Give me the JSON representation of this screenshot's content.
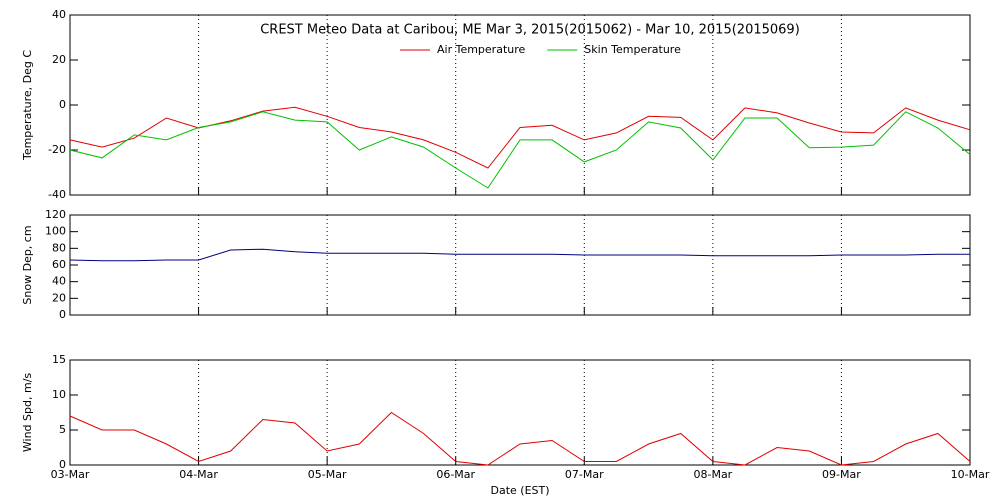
{
  "chart_data": [
    {
      "type": "line",
      "title": "CREST Meteo Data at Caribou, ME   Mar  3, 2015(2015062) - Mar 10, 2015(2015069)",
      "y_label": "Temperature, Deg C",
      "x": [
        0,
        0.25,
        0.5,
        0.75,
        1,
        1.25,
        1.5,
        1.75,
        2,
        2.25,
        2.5,
        2.75,
        3,
        3.25,
        3.5,
        3.75,
        4,
        4.25,
        4.5,
        4.75,
        5,
        5.25,
        5.5,
        5.75,
        6,
        6.25,
        6.5,
        6.75,
        7
      ],
      "xlim": [
        0,
        7
      ],
      "xticks": [
        0,
        1,
        2,
        3,
        4,
        5,
        6,
        7
      ],
      "ylim": [
        -40,
        40
      ],
      "yticks": [
        -40,
        -20,
        0,
        20,
        40
      ],
      "grid": "x",
      "series": [
        {
          "name": "Air Temperature",
          "color": "#e00000",
          "values": [
            -15.5,
            -18.7,
            -14.7,
            -5.8,
            -10.2,
            -7,
            -2.7,
            -1,
            -5,
            -10,
            -12,
            -15.5,
            -21,
            -28,
            -10,
            -9,
            -15.5,
            -12.4,
            -5,
            -5.5,
            -15.5,
            -1.3,
            -3.5,
            -8,
            -12,
            -12.4,
            -1.3,
            -6.7,
            -11
          ]
        },
        {
          "name": "Skin Temperature",
          "color": "#00c000",
          "values": [
            -20,
            -23.5,
            -13.3,
            -15.5,
            -10,
            -7.5,
            -3,
            -6.7,
            -7.5,
            -20,
            -14.2,
            -18.7,
            -28,
            -36.9,
            -15.5,
            -15.5,
            -25.3,
            -20,
            -7.5,
            -10.2,
            -24.4,
            -5.8,
            -5.8,
            -19,
            -18.7,
            -17.8,
            -3,
            -10.2,
            -22
          ]
        }
      ]
    },
    {
      "type": "line",
      "y_label": "Snow Dep, cm",
      "x": [
        0,
        0.25,
        0.5,
        0.75,
        1,
        1.25,
        1.5,
        1.75,
        2,
        2.25,
        2.5,
        2.75,
        3,
        3.25,
        3.5,
        3.75,
        4,
        4.25,
        4.5,
        4.75,
        5,
        5.25,
        5.5,
        5.75,
        6,
        6.25,
        6.5,
        6.75,
        7
      ],
      "xlim": [
        0,
        7
      ],
      "xticks": [
        0,
        1,
        2,
        3,
        4,
        5,
        6,
        7
      ],
      "ylim": [
        0,
        120
      ],
      "yticks": [
        0,
        20,
        40,
        60,
        80,
        100,
        120
      ],
      "grid": "x",
      "series": [
        {
          "name": "Snow Depth",
          "color": "#000080",
          "values": [
            66,
            65,
            65,
            66,
            66,
            78,
            79,
            76,
            74,
            74,
            74,
            74,
            73,
            73,
            73,
            73,
            72,
            72,
            72,
            72,
            71,
            71,
            71,
            71,
            72,
            72,
            72,
            73,
            73
          ]
        }
      ]
    },
    {
      "type": "line",
      "y_label": "Wind Spd, m/s",
      "x_label": "Date (EST)",
      "x": [
        0,
        0.25,
        0.5,
        0.75,
        1,
        1.25,
        1.5,
        1.75,
        2,
        2.25,
        2.5,
        2.75,
        3,
        3.25,
        3.5,
        3.75,
        4,
        4.25,
        4.5,
        4.75,
        5,
        5.25,
        5.5,
        5.75,
        6,
        6.25,
        6.5,
        6.75,
        7
      ],
      "xlim": [
        0,
        7
      ],
      "xticks": [
        {
          "value": 0,
          "label": "03-Mar"
        },
        {
          "value": 1,
          "label": "04-Mar"
        },
        {
          "value": 2,
          "label": "05-Mar"
        },
        {
          "value": 3,
          "label": "06-Mar"
        },
        {
          "value": 4,
          "label": "07-Mar"
        },
        {
          "value": 5,
          "label": "08-Mar"
        },
        {
          "value": 6,
          "label": "09-Mar"
        },
        {
          "value": 7,
          "label": "10-Mar"
        }
      ],
      "ylim": [
        0,
        15
      ],
      "yticks": [
        0,
        5,
        10,
        15
      ],
      "grid": "x",
      "series": [
        {
          "name": "Wind Speed",
          "color": "#e00000",
          "values": [
            7,
            5,
            5,
            3,
            0.5,
            2,
            6.5,
            6,
            2,
            3,
            7.5,
            4.5,
            0.5,
            0,
            3,
            3.5,
            0.5,
            0.5,
            3,
            4.5,
            0.5,
            0,
            2.5,
            2,
            0,
            0.5,
            3,
            4.5,
            0.5
          ]
        }
      ]
    }
  ]
}
